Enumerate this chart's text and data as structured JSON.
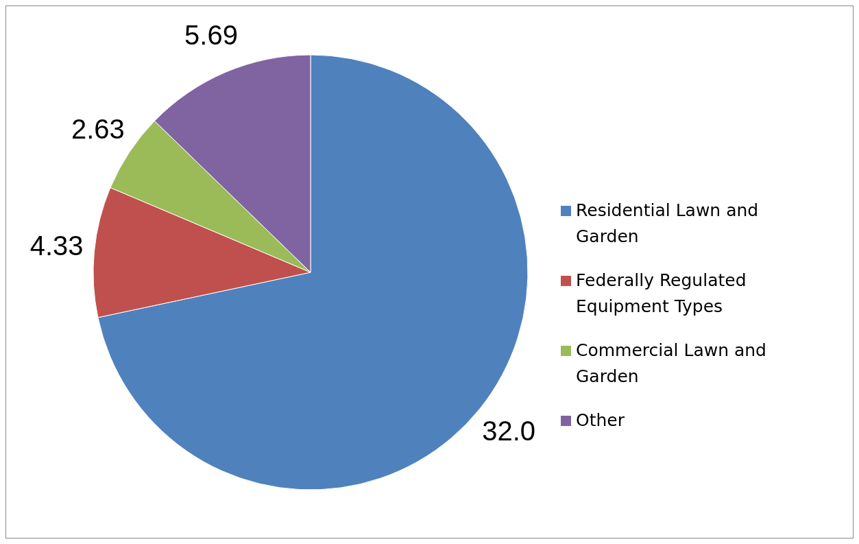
{
  "chart_data": {
    "type": "pie",
    "categories": [
      "Residential Lawn and Garden",
      "Federally Regulated Equipment Types",
      "Commercial Lawn and Garden",
      "Other"
    ],
    "values": [
      32.0,
      4.33,
      2.63,
      5.69
    ],
    "value_labels": [
      "32.0",
      "4.33",
      "2.63",
      "5.69"
    ],
    "colors": [
      "#4f81bd",
      "#c0504d",
      "#9bbb59",
      "#8064a2"
    ],
    "legend": "right"
  }
}
